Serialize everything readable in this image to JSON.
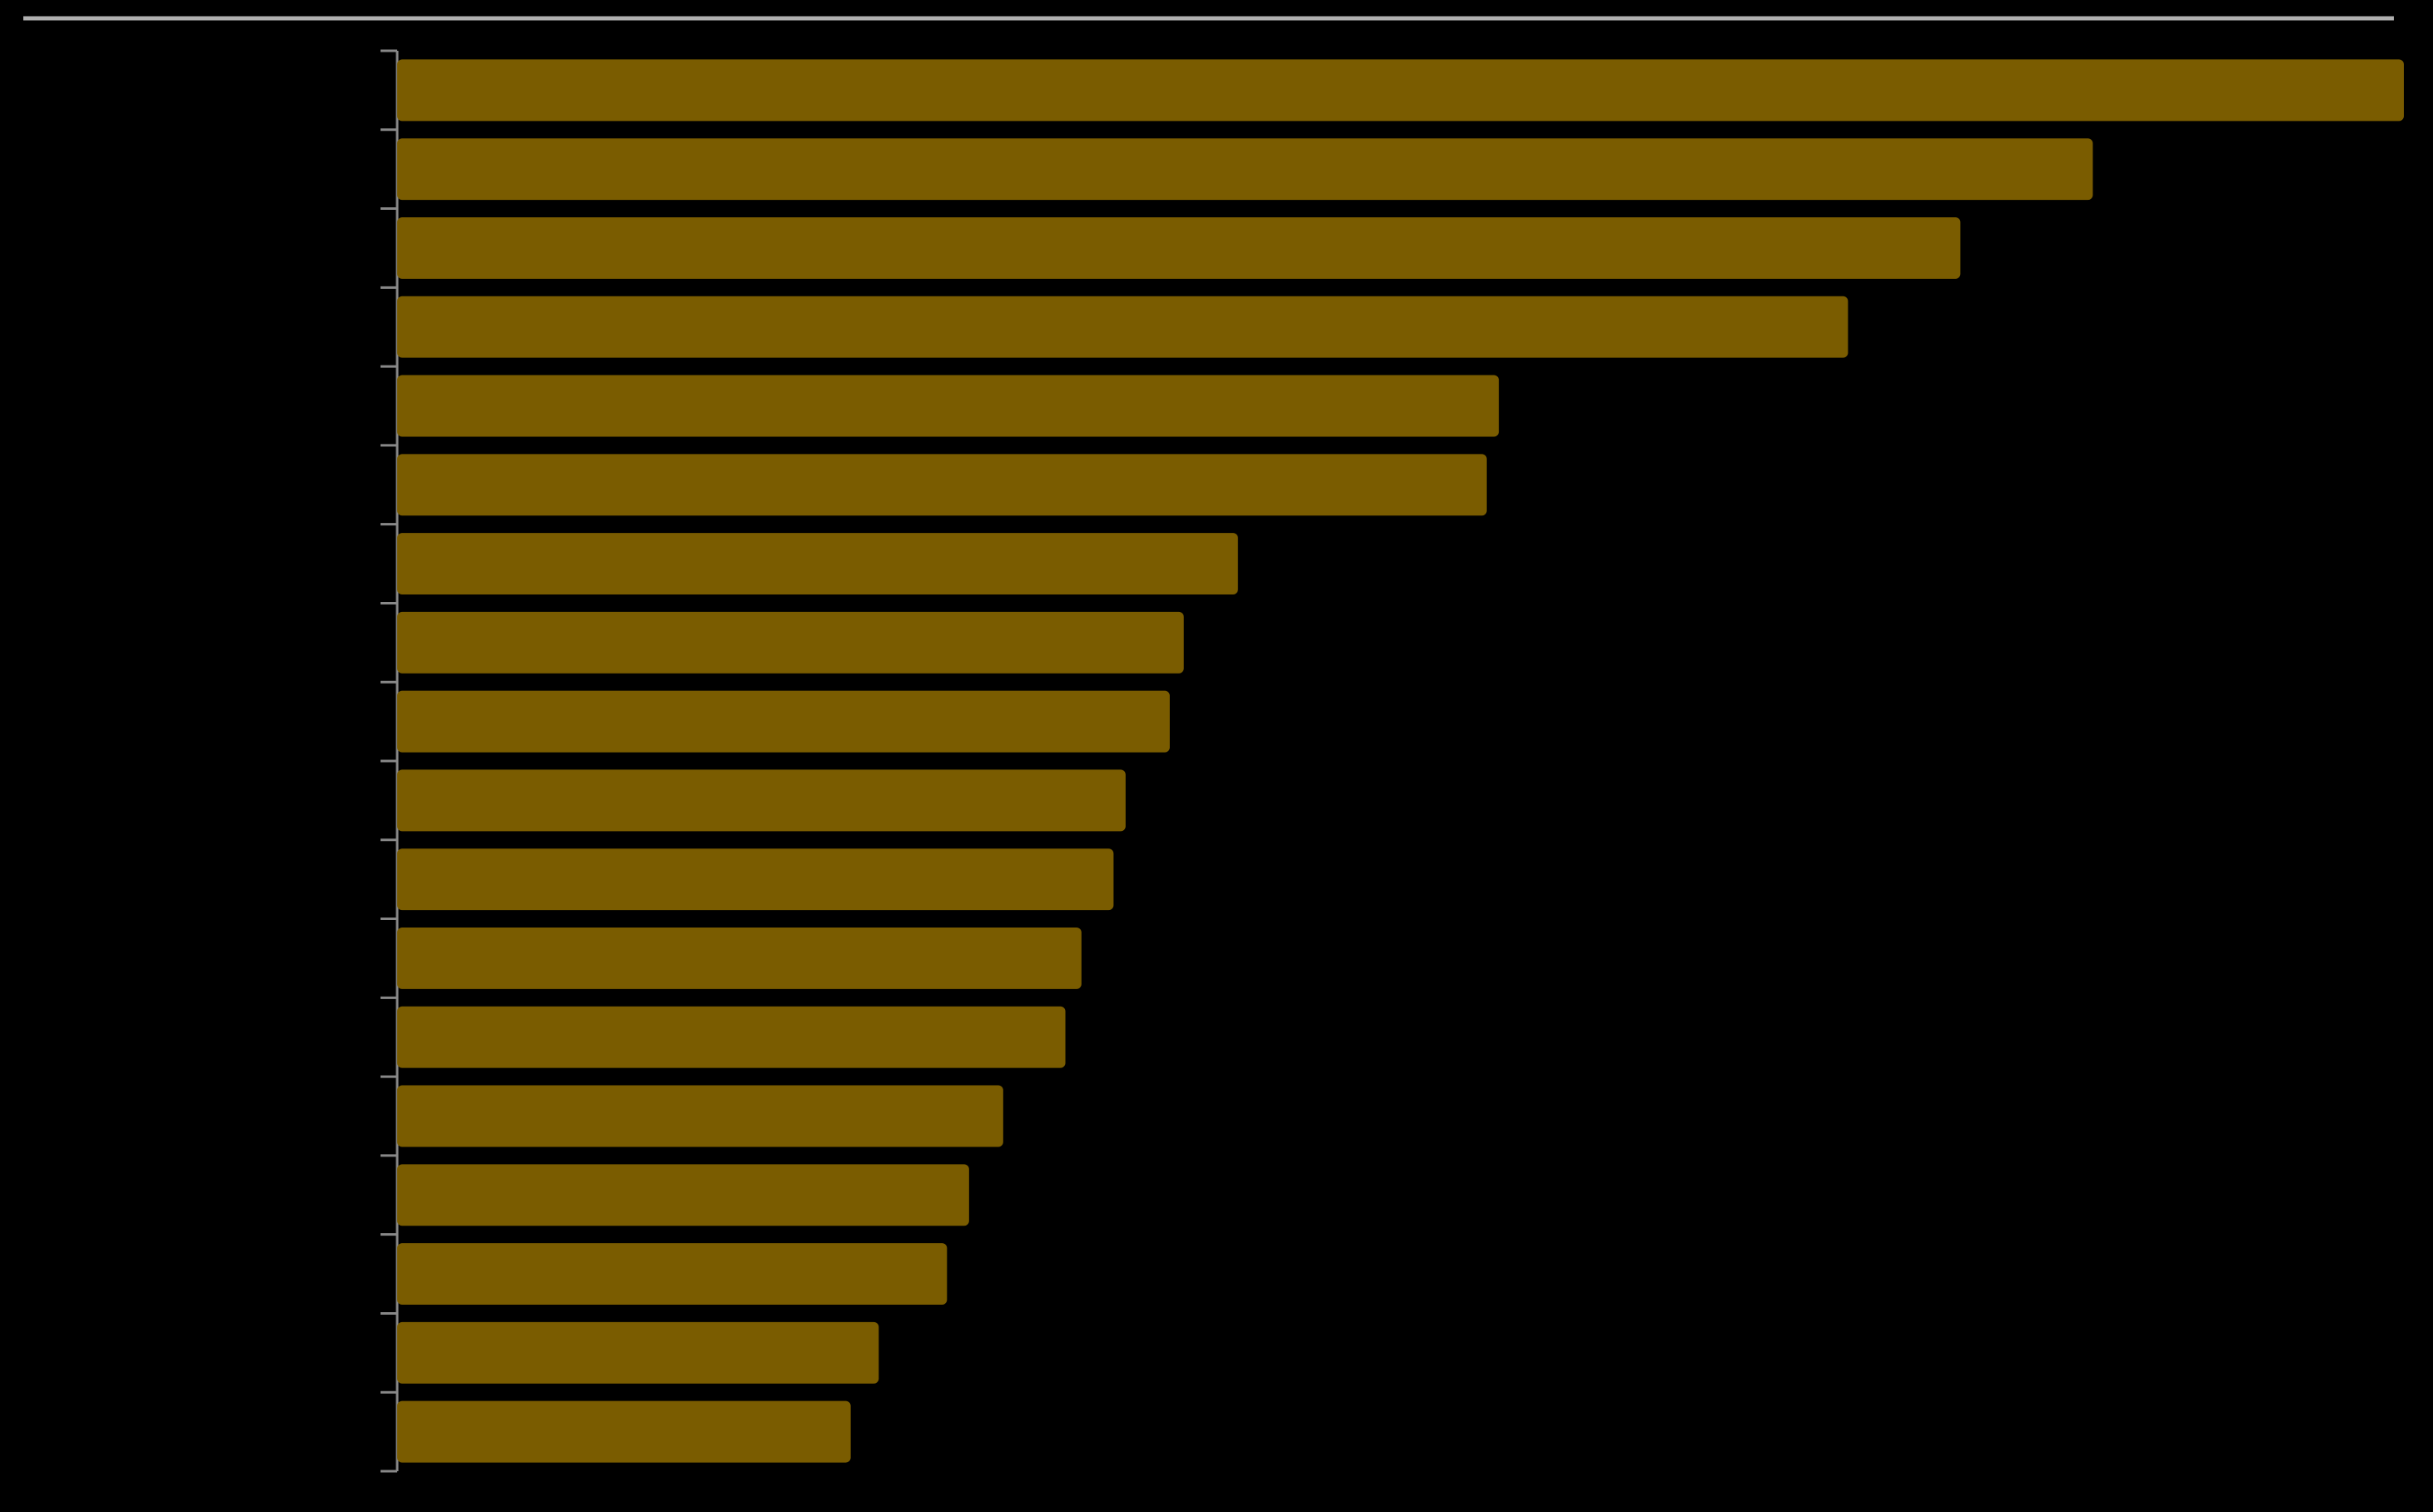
{
  "chart_data": {
    "type": "bar",
    "orientation": "horizontal",
    "categories": [
      null,
      null,
      null,
      null,
      null,
      null,
      null,
      null,
      null,
      null,
      null,
      null,
      null,
      null,
      null,
      null,
      null,
      null
    ],
    "values": [
      100,
      84.5,
      77.9,
      72.3,
      54.9,
      54.3,
      41.9,
      39.2,
      38.5,
      36.3,
      35.7,
      34.1,
      33.3,
      30.2,
      28.5,
      27.4,
      24.0,
      22.6
    ],
    "color": "#7a5c00",
    "xlim": [
      0,
      100
    ]
  }
}
